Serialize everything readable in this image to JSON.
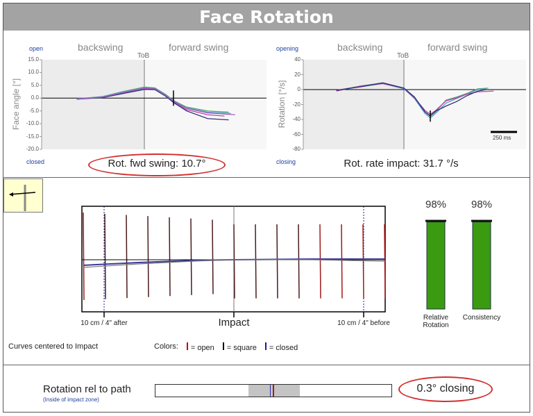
{
  "title": "Face Rotation",
  "face_chart": {
    "open_label": "open",
    "closed_label": "closed",
    "backswing": "backswing",
    "forward_swing": "forward swing",
    "tob": "ToB",
    "ylabel": "Face angle [°]",
    "yticks": [
      "15.0",
      "10.0",
      "5.0",
      "0.0",
      "-5.0",
      "-10.0",
      "-15.0",
      "-20.0"
    ],
    "result": "Rot. fwd swing: 10.7°"
  },
  "rate_chart": {
    "open_label": "opening",
    "closed_label": "closing",
    "backswing": "backswing",
    "forward_swing": "forward swing",
    "tob": "ToB",
    "ylabel": "Rotation [°/s]",
    "yticks": [
      "40",
      "20",
      "0",
      "-20",
      "-40",
      "-60",
      "-80"
    ],
    "scale_label": "250 ms",
    "result": "Rot. rate impact: 31.7 °/s"
  },
  "impact_chart": {
    "after_label": "10 cm / 4\" after",
    "impact_label": "Impact",
    "before_label": "10 cm / 4\" before",
    "note": "Curves centered to Impact",
    "colors_label": "Colors:",
    "legend": [
      {
        "label": "= open",
        "color": "#c00000"
      },
      {
        "label": "= square",
        "color": "#000000"
      },
      {
        "label": "= closed",
        "color": "#1a1a9a"
      }
    ]
  },
  "scores": [
    {
      "value": "98%",
      "label": "Relative Rotation",
      "level": 98
    },
    {
      "value": "98%",
      "label": "Consistency",
      "level": 98
    }
  ],
  "path": {
    "label": "Rotation rel to path",
    "sub": "(Inside of impact zone)",
    "value": "0.3° closing"
  },
  "colors": {
    "title_bg": "#a3a3a3",
    "bar_green": "#3a9a10",
    "ellipse": "#d23030"
  },
  "chart_data": [
    {
      "type": "line",
      "title": "",
      "ylabel": "Face angle [°]",
      "ylim": [
        -20,
        15
      ],
      "xunit": "ms relative to ToB",
      "series": [
        {
          "x": [
            -640,
            -400,
            -200,
            0,
            100,
            200,
            280,
            400,
            600,
            800
          ],
          "y": [
            -0.3,
            0.6,
            2.6,
            4.3,
            4,
            1.5,
            -1,
            -3.5,
            -5,
            -5.5
          ]
        },
        {
          "x": [
            -640,
            -400,
            -200,
            0,
            100,
            200,
            280,
            400,
            600,
            820
          ],
          "y": [
            -0.2,
            0.5,
            2.4,
            4,
            3.8,
            1.2,
            -1.2,
            -3.8,
            -5.5,
            -6
          ]
        },
        {
          "x": [
            -640,
            -400,
            -200,
            0,
            100,
            200,
            280,
            400,
            600,
            760
          ],
          "y": [
            -0.4,
            0.3,
            2,
            3.6,
            3.5,
            1,
            -1.5,
            -4.5,
            -6.5,
            -7
          ]
        },
        {
          "x": [
            -640,
            -400,
            -200,
            0,
            100,
            200,
            280,
            400,
            600,
            800
          ],
          "y": [
            -0.4,
            0.2,
            1.8,
            3.4,
            3.3,
            0.8,
            -1.8,
            -5,
            -8,
            -8.5
          ]
        },
        {
          "x": [
            -640,
            -400,
            -200,
            0,
            100,
            200,
            280,
            400,
            600,
            860
          ],
          "y": [
            -0.3,
            0.4,
            2.2,
            3.9,
            3.7,
            1.1,
            -1.3,
            -4,
            -5.8,
            -6.5
          ]
        }
      ]
    },
    {
      "type": "line",
      "title": "",
      "ylabel": "Rotation [°/s]",
      "ylim": [
        -80,
        40
      ],
      "xunit": "ms relative to ToB",
      "series": [
        {
          "x": [
            -640,
            -400,
            -200,
            0,
            100,
            200,
            250,
            300,
            400,
            500,
            600,
            700,
            800
          ],
          "y": [
            -1,
            5,
            9,
            2,
            -10,
            -30,
            -36,
            -30,
            -14,
            -10,
            -5,
            1,
            2
          ]
        },
        {
          "x": [
            -640,
            -400,
            -200,
            0,
            100,
            200,
            250,
            300,
            400,
            500,
            600,
            700,
            780
          ],
          "y": [
            -1,
            4,
            8,
            1,
            -12,
            -32,
            -38,
            -32,
            -18,
            -12,
            -6,
            0,
            1
          ]
        },
        {
          "x": [
            -640,
            -400,
            -200,
            0,
            100,
            200,
            250,
            300,
            400,
            500,
            600,
            700,
            850
          ],
          "y": [
            -2,
            5,
            8,
            2,
            -11,
            -28,
            -33,
            -28,
            -15,
            -11,
            -6,
            -3,
            -2
          ]
        },
        {
          "x": [
            -640,
            -400,
            -200,
            0,
            100,
            200,
            250,
            300,
            400,
            500,
            600,
            700,
            780
          ],
          "y": [
            -1,
            4,
            9,
            2,
            -10,
            -30,
            -35,
            -29,
            -22,
            -16,
            -8,
            -2,
            0
          ]
        }
      ]
    }
  ]
}
